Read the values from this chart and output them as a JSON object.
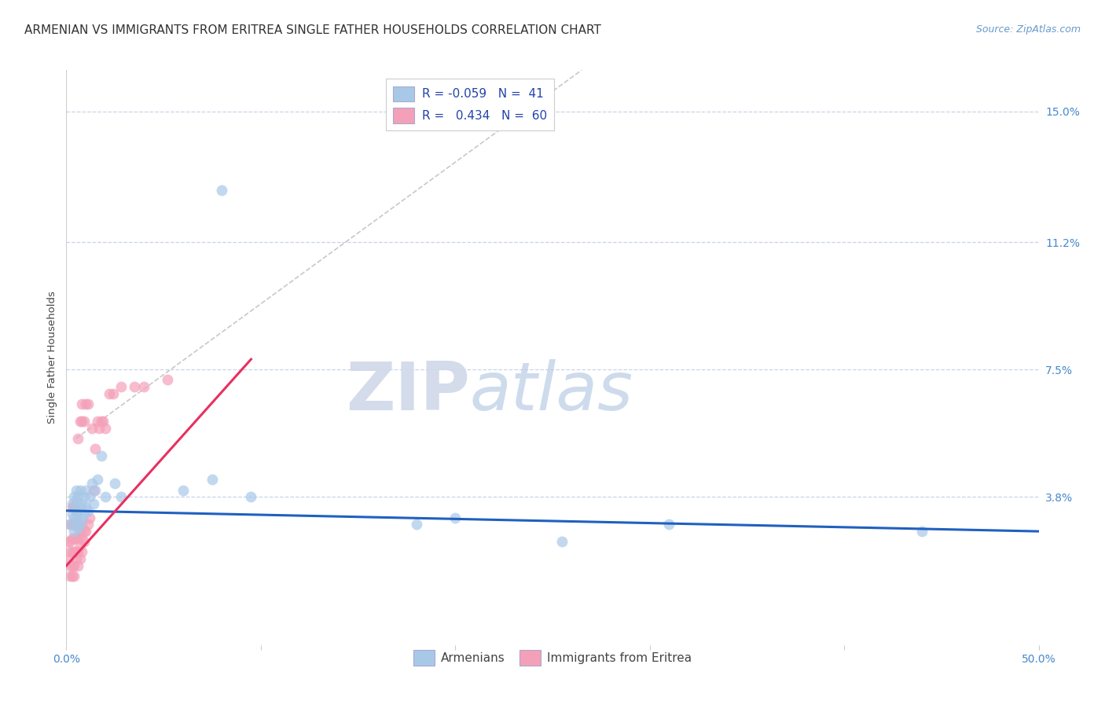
{
  "title": "ARMENIAN VS IMMIGRANTS FROM ERITREA SINGLE FATHER HOUSEHOLDS CORRELATION CHART",
  "source": "Source: ZipAtlas.com",
  "ylabel": "Single Father Households",
  "ytick_labels": [
    "15.0%",
    "11.2%",
    "7.5%",
    "3.8%"
  ],
  "ytick_values": [
    0.15,
    0.112,
    0.075,
    0.038
  ],
  "xmin": 0.0,
  "xmax": 0.5,
  "ymin": -0.005,
  "ymax": 0.162,
  "armenian_color": "#a8c8e8",
  "eritrea_color": "#f4a0b8",
  "armenian_line_color": "#2060c0",
  "eritrea_line_color": "#e83060",
  "diagonal_color": "#c8c8cc",
  "watermark_zip": "ZIP",
  "watermark_atlas": "atlas",
  "background_color": "#ffffff",
  "grid_color": "#c8d4e8",
  "title_fontsize": 11,
  "axis_label_fontsize": 9.5,
  "tick_fontsize": 10,
  "legend_fontsize": 11,
  "source_fontsize": 9,
  "armenian_line_x": [
    0.0,
    0.5
  ],
  "armenian_line_y": [
    0.034,
    0.028
  ],
  "eritrea_line_x": [
    0.0,
    0.095
  ],
  "eritrea_line_y": [
    0.018,
    0.078
  ],
  "armenian_scatter_x": [
    0.002,
    0.003,
    0.003,
    0.004,
    0.004,
    0.004,
    0.005,
    0.005,
    0.005,
    0.005,
    0.006,
    0.006,
    0.006,
    0.007,
    0.007,
    0.007,
    0.008,
    0.008,
    0.009,
    0.009,
    0.01,
    0.01,
    0.011,
    0.012,
    0.013,
    0.014,
    0.015,
    0.016,
    0.018,
    0.02,
    0.025,
    0.028,
    0.06,
    0.075,
    0.08,
    0.095,
    0.18,
    0.2,
    0.255,
    0.31,
    0.44
  ],
  "armenian_scatter_y": [
    0.03,
    0.033,
    0.036,
    0.028,
    0.032,
    0.038,
    0.031,
    0.034,
    0.037,
    0.04,
    0.029,
    0.033,
    0.038,
    0.03,
    0.035,
    0.04,
    0.032,
    0.036,
    0.033,
    0.038,
    0.035,
    0.04,
    0.034,
    0.038,
    0.042,
    0.036,
    0.04,
    0.043,
    0.05,
    0.038,
    0.042,
    0.038,
    0.04,
    0.043,
    0.127,
    0.038,
    0.03,
    0.032,
    0.025,
    0.03,
    0.028
  ],
  "eritrea_scatter_x": [
    0.001,
    0.001,
    0.002,
    0.002,
    0.002,
    0.002,
    0.002,
    0.003,
    0.003,
    0.003,
    0.003,
    0.003,
    0.003,
    0.004,
    0.004,
    0.004,
    0.004,
    0.004,
    0.004,
    0.005,
    0.005,
    0.005,
    0.005,
    0.005,
    0.006,
    0.006,
    0.006,
    0.006,
    0.006,
    0.007,
    0.007,
    0.007,
    0.007,
    0.008,
    0.008,
    0.008,
    0.008,
    0.008,
    0.009,
    0.009,
    0.009,
    0.01,
    0.01,
    0.011,
    0.011,
    0.012,
    0.013,
    0.014,
    0.015,
    0.016,
    0.017,
    0.018,
    0.019,
    0.02,
    0.022,
    0.024,
    0.028,
    0.035,
    0.04,
    0.052
  ],
  "eritrea_scatter_y": [
    0.02,
    0.025,
    0.015,
    0.018,
    0.022,
    0.025,
    0.03,
    0.015,
    0.018,
    0.022,
    0.026,
    0.03,
    0.035,
    0.015,
    0.018,
    0.022,
    0.026,
    0.03,
    0.035,
    0.02,
    0.022,
    0.026,
    0.03,
    0.034,
    0.018,
    0.022,
    0.026,
    0.03,
    0.055,
    0.02,
    0.024,
    0.028,
    0.06,
    0.022,
    0.026,
    0.03,
    0.06,
    0.065,
    0.025,
    0.028,
    0.06,
    0.028,
    0.065,
    0.03,
    0.065,
    0.032,
    0.058,
    0.04,
    0.052,
    0.06,
    0.058,
    0.06,
    0.06,
    0.058,
    0.068,
    0.068,
    0.07,
    0.07,
    0.07,
    0.072
  ]
}
